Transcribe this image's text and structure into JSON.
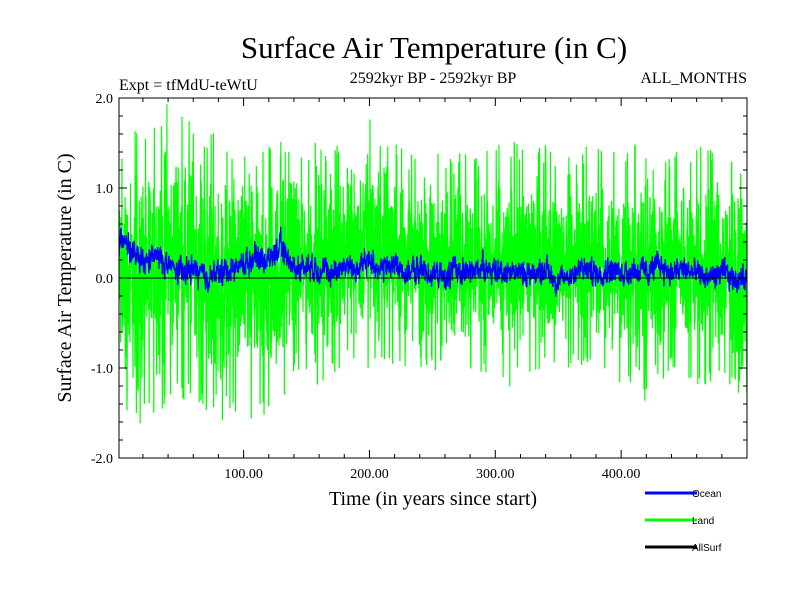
{
  "chart_data": {
    "type": "line",
    "title": "Surface Air Temperature (in C)",
    "subtitle_left": "Expt = tfMdU-teWtU",
    "subtitle_center": "2592kyr BP - 2592kyr BP",
    "subtitle_right": "ALL_MONTHS",
    "xlabel": "Time (in years since start)",
    "ylabel": "Surface Air Temperature (in C)",
    "xlim": [
      1,
      500
    ],
    "ylim": [
      -2.0,
      2.0
    ],
    "x_ticks": [
      100,
      200,
      300,
      400
    ],
    "x_tick_labels": [
      "100.00",
      "200.00",
      "300.00",
      "400.00"
    ],
    "y_ticks": [
      -2,
      -1,
      0,
      1,
      2
    ],
    "y_tick_labels": [
      "-2.0",
      "-1.0",
      "0.0",
      "1.0",
      "2.0"
    ],
    "zero_line": 0,
    "series": [
      {
        "name": "Land",
        "color": "#00ff00",
        "note": "monthly anomalies approx. 500 years, range about -1.7 to 2.0",
        "envelope_x": [
          1,
          20,
          40,
          60,
          80,
          100,
          120,
          140,
          160,
          180,
          200,
          220,
          240,
          260,
          280,
          300,
          320,
          340,
          360,
          380,
          400,
          420,
          440,
          460,
          480,
          500
        ],
        "envelope_max": [
          1.5,
          1.7,
          1.95,
          1.8,
          1.6,
          1.5,
          1.6,
          1.5,
          1.5,
          1.55,
          1.95,
          1.5,
          1.4,
          1.5,
          1.4,
          1.5,
          1.55,
          1.5,
          1.4,
          1.5,
          1.4,
          1.6,
          1.4,
          1.5,
          1.45,
          1.2
        ],
        "envelope_min": [
          -1.6,
          -1.65,
          -1.45,
          -1.3,
          -1.65,
          -1.55,
          -1.65,
          -1.1,
          -1.2,
          -1.0,
          -1.05,
          -1.0,
          -1.0,
          -1.05,
          -1.0,
          -1.35,
          -1.1,
          -1.0,
          -1.0,
          -1.0,
          -1.2,
          -1.45,
          -1.0,
          -1.2,
          -1.2,
          -1.35
        ]
      },
      {
        "name": "Ocean",
        "color": "#0000ff",
        "note": "smoother series, range about -0.3 to 0.65",
        "x": [
          1,
          5,
          10,
          20,
          30,
          40,
          50,
          60,
          70,
          80,
          90,
          100,
          110,
          120,
          130,
          140,
          150,
          160,
          170,
          180,
          190,
          200,
          210,
          220,
          230,
          240,
          250,
          260,
          270,
          280,
          290,
          300,
          310,
          320,
          330,
          340,
          350,
          360,
          370,
          380,
          390,
          400,
          410,
          420,
          430,
          440,
          450,
          460,
          470,
          480,
          490,
          500
        ],
        "values": [
          0.35,
          0.5,
          0.3,
          0.15,
          0.25,
          0.15,
          0.05,
          0.1,
          0.0,
          0.05,
          0.1,
          0.15,
          0.25,
          0.2,
          0.35,
          0.1,
          0.15,
          0.1,
          0.05,
          0.15,
          0.1,
          0.2,
          0.1,
          0.15,
          0.05,
          0.1,
          0.05,
          0.0,
          0.1,
          0.05,
          0.15,
          0.05,
          0.1,
          0.05,
          0.05,
          0.1,
          -0.05,
          0.05,
          0.1,
          0.05,
          0.1,
          0.05,
          0.1,
          0.05,
          0.15,
          0.05,
          0.1,
          0.05,
          0.0,
          0.05,
          0.0,
          0.0
        ],
        "amplitude": 0.22
      },
      {
        "name": "AllSurf",
        "color": "#000000",
        "note": "drawn beneath the others; legend entry only visible"
      }
    ],
    "legend": {
      "placement": "bottom-right",
      "entries": [
        "Ocean",
        "Land",
        "AllSurf"
      ]
    }
  }
}
